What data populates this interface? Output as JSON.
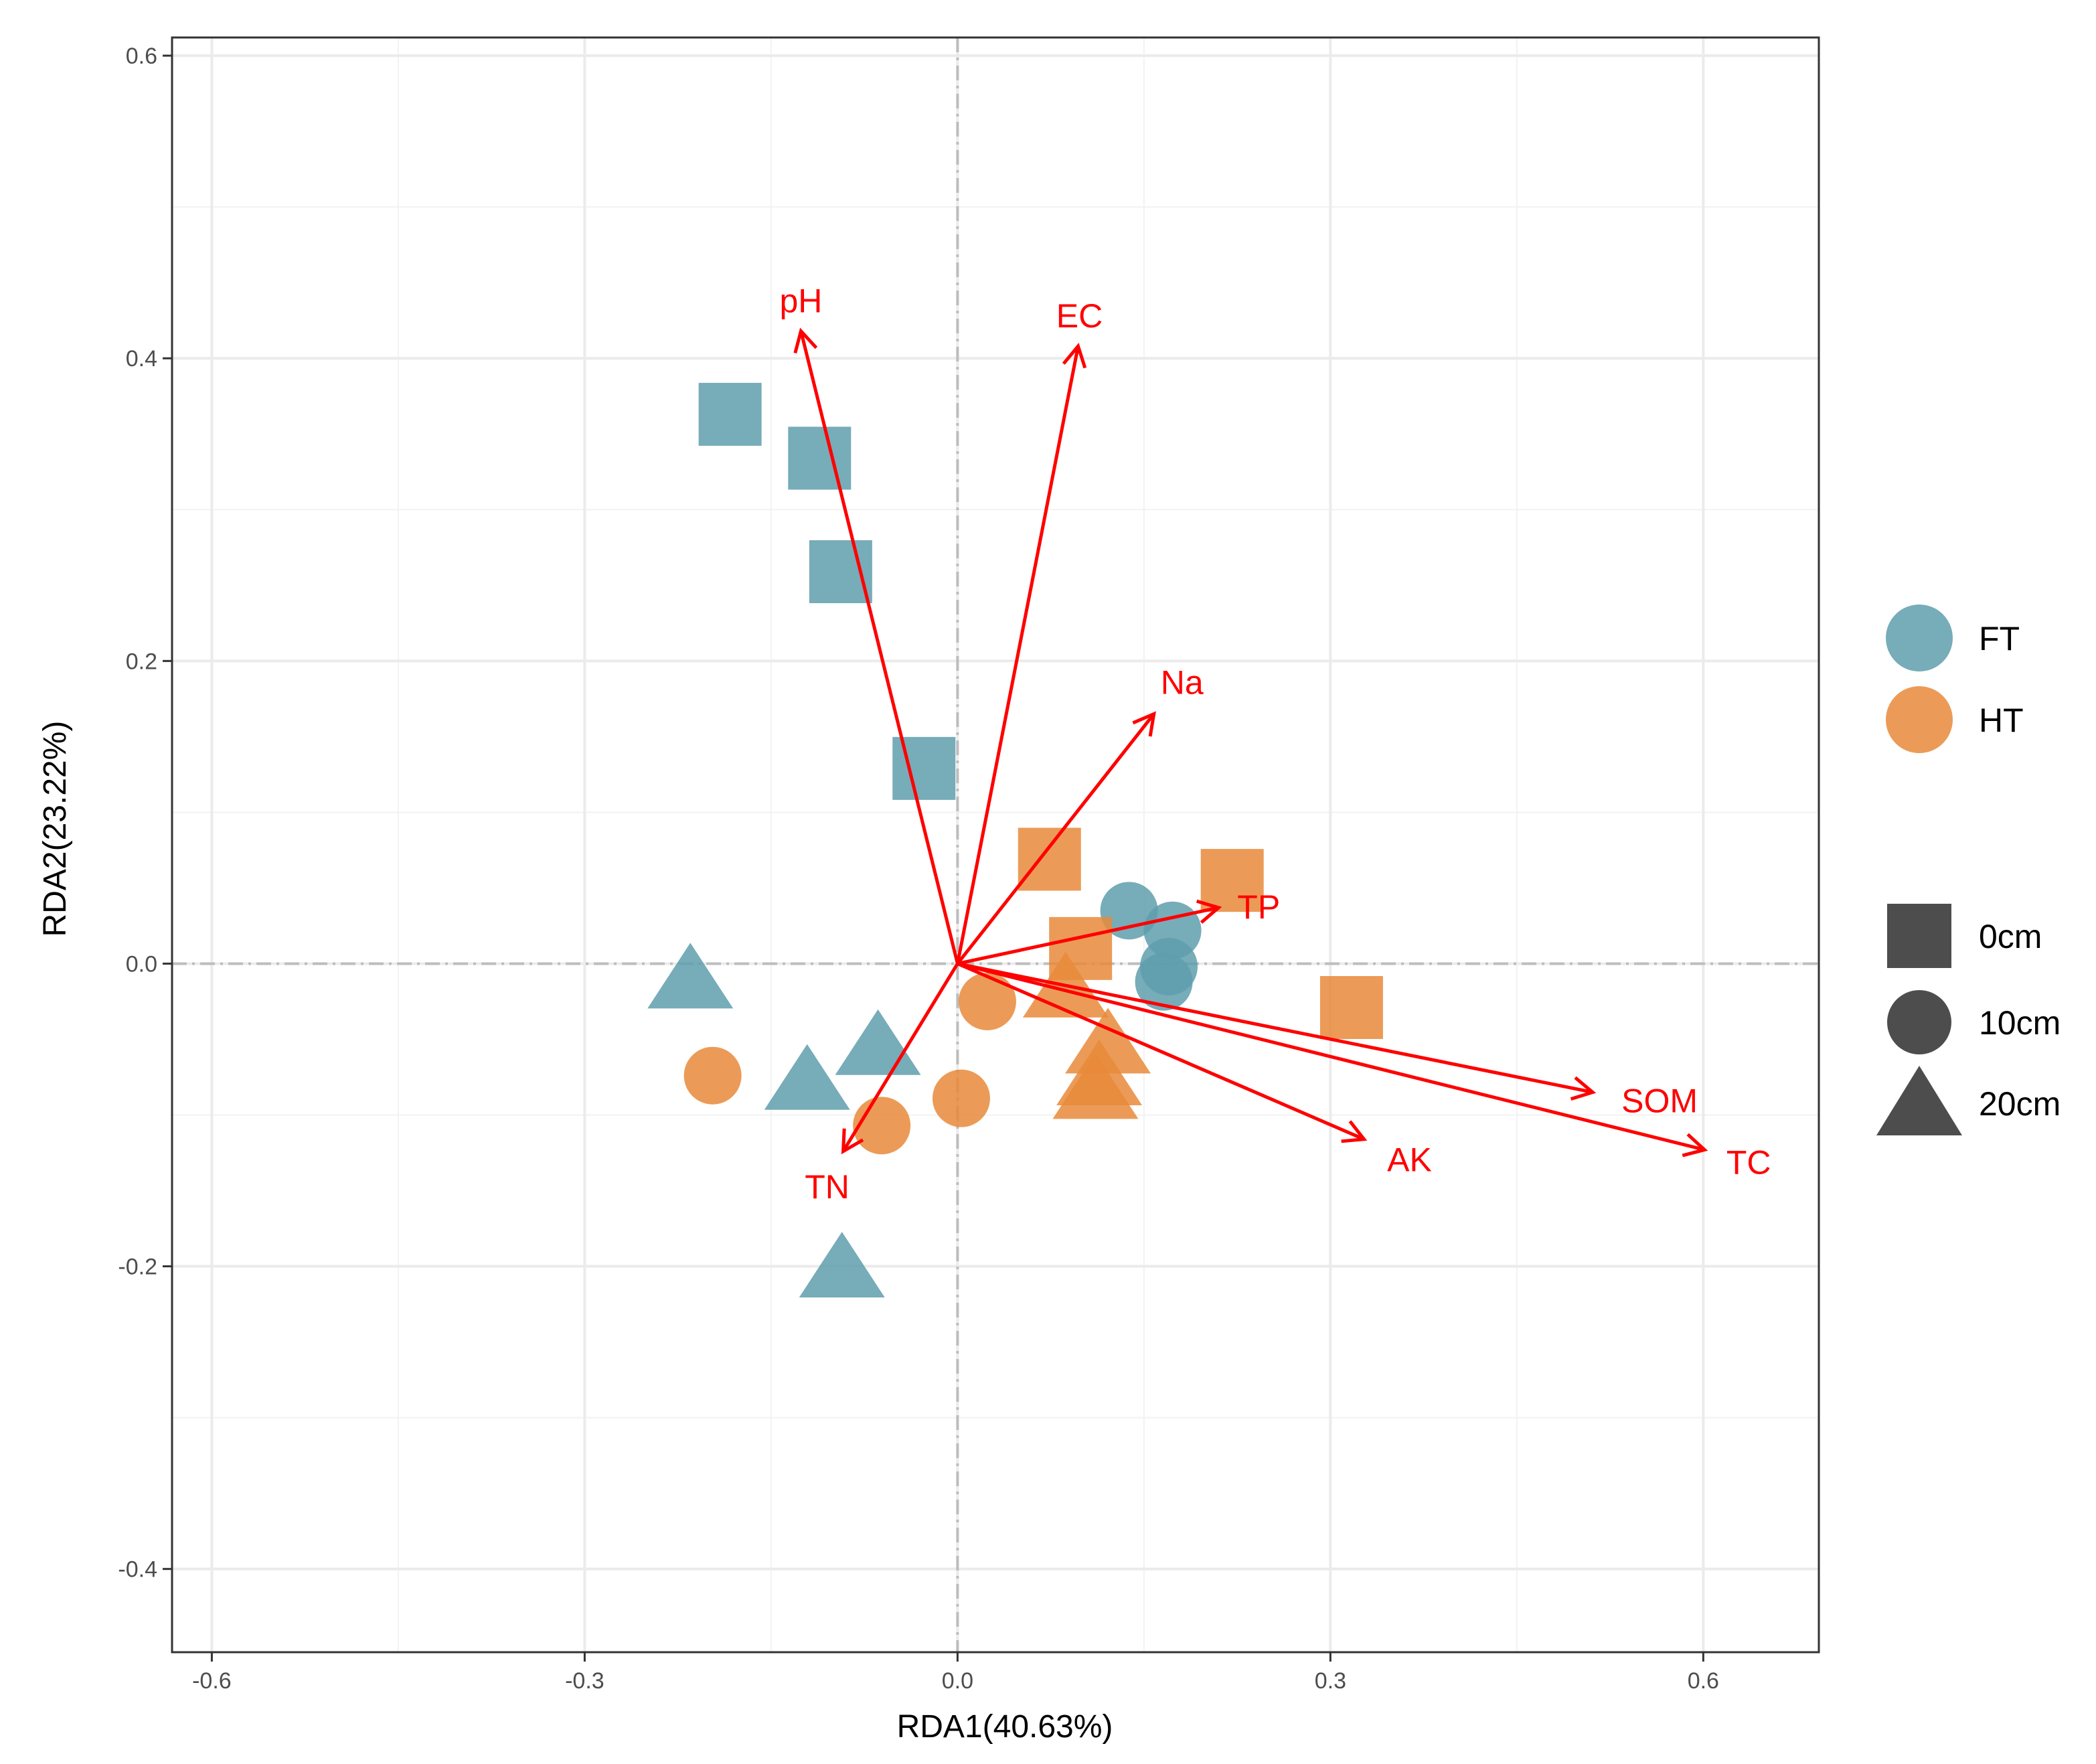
{
  "chart_data": {
    "type": "scatter",
    "title": "",
    "xlabel": "RDA1(40.63%)",
    "ylabel": "RDA2(23.22%)",
    "xlim": [
      -0.632,
      0.693
    ],
    "ylim": [
      -0.455,
      0.612
    ],
    "xticks": [
      -0.6,
      -0.3,
      0.0,
      0.3,
      0.6
    ],
    "yticks": [
      -0.4,
      -0.2,
      0.0,
      0.2,
      0.4,
      0.6
    ],
    "xtick_labels": [
      "-0.6",
      "-0.3",
      "0.0",
      "0.3",
      "0.6"
    ],
    "ytick_labels": [
      "-0.4",
      "-0.2",
      "0.0",
      "0.2",
      "0.4",
      "0.6"
    ],
    "grid": true,
    "legend_position": "right",
    "colors": {
      "FT": "#5f9ead",
      "HT": "#e88a3a",
      "arrow": "#ff0000",
      "shape_legend": "#4d4d4d"
    },
    "points": [
      {
        "group": "FT",
        "depth": "0cm",
        "x": -0.183,
        "y": 0.363
      },
      {
        "group": "FT",
        "depth": "0cm",
        "x": -0.111,
        "y": 0.334
      },
      {
        "group": "FT",
        "depth": "0cm",
        "x": -0.094,
        "y": 0.259
      },
      {
        "group": "FT",
        "depth": "0cm",
        "x": -0.027,
        "y": 0.129
      },
      {
        "group": "FT",
        "depth": "10cm",
        "x": 0.138,
        "y": 0.035
      },
      {
        "group": "FT",
        "depth": "10cm",
        "x": 0.173,
        "y": 0.022
      },
      {
        "group": "FT",
        "depth": "10cm",
        "x": 0.17,
        "y": -0.002
      },
      {
        "group": "FT",
        "depth": "10cm",
        "x": 0.166,
        "y": -0.012
      },
      {
        "group": "FT",
        "depth": "20cm",
        "x": -0.215,
        "y": -0.011
      },
      {
        "group": "FT",
        "depth": "20cm",
        "x": -0.121,
        "y": -0.078
      },
      {
        "group": "FT",
        "depth": "20cm",
        "x": -0.064,
        "y": -0.055
      },
      {
        "group": "FT",
        "depth": "20cm",
        "x": -0.093,
        "y": -0.202
      },
      {
        "group": "HT",
        "depth": "0cm",
        "x": 0.074,
        "y": 0.069
      },
      {
        "group": "HT",
        "depth": "0cm",
        "x": 0.221,
        "y": 0.055
      },
      {
        "group": "HT",
        "depth": "0cm",
        "x": 0.099,
        "y": 0.01
      },
      {
        "group": "HT",
        "depth": "0cm",
        "x": 0.317,
        "y": -0.029
      },
      {
        "group": "HT",
        "depth": "10cm",
        "x": 0.024,
        "y": -0.025
      },
      {
        "group": "HT",
        "depth": "10cm",
        "x": -0.197,
        "y": -0.074
      },
      {
        "group": "HT",
        "depth": "10cm",
        "x": 0.003,
        "y": -0.089
      },
      {
        "group": "HT",
        "depth": "10cm",
        "x": -0.061,
        "y": -0.107
      },
      {
        "group": "HT",
        "depth": "20cm",
        "x": 0.087,
        "y": -0.017
      },
      {
        "group": "HT",
        "depth": "20cm",
        "x": 0.121,
        "y": -0.054
      },
      {
        "group": "HT",
        "depth": "20cm",
        "x": 0.114,
        "y": -0.075
      },
      {
        "group": "HT",
        "depth": "20cm",
        "x": 0.111,
        "y": -0.084
      }
    ],
    "vectors": [
      {
        "label": "pH",
        "x": -0.126,
        "y": 0.418
      },
      {
        "label": "EC",
        "x": 0.097,
        "y": 0.408
      },
      {
        "label": "Na",
        "x": 0.158,
        "y": 0.165
      },
      {
        "label": "TP",
        "x": 0.21,
        "y": 0.037
      },
      {
        "label": "SOM",
        "x": 0.511,
        "y": -0.085
      },
      {
        "label": "AK",
        "x": 0.327,
        "y": -0.116
      },
      {
        "label": "TC",
        "x": 0.601,
        "y": -0.123
      },
      {
        "label": "TN",
        "x": -0.092,
        "y": -0.124
      }
    ],
    "legend": {
      "groups": [
        "FT",
        "HT"
      ],
      "depths": [
        "0cm",
        "10cm",
        "20cm"
      ]
    }
  }
}
